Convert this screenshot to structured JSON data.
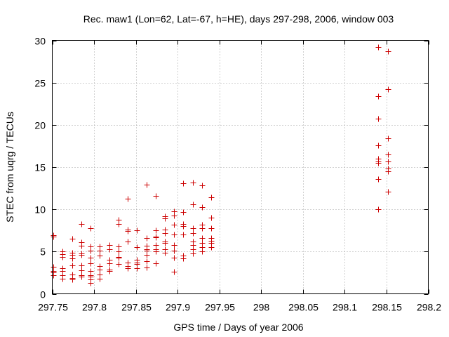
{
  "chart_data": {
    "type": "scatter",
    "title": "Rec. maw1 (Lon=62, Lat=-67, h=HE), days 297-298, 2006, window 003",
    "xlabel": "GPS time / Days of year 2006",
    "ylabel": "STEC from uqrg / TECUs",
    "xlim": [
      297.75,
      298.2
    ],
    "ylim": [
      0,
      30
    ],
    "xticks": [
      297.75,
      297.8,
      297.85,
      297.9,
      297.95,
      298.0,
      298.05,
      298.1,
      298.15,
      298.2
    ],
    "xtick_labels": [
      "297.75",
      "297.8",
      "297.85",
      "297.9",
      "297.95",
      "298",
      "298.05",
      "298.1",
      "298.15",
      "298.2"
    ],
    "yticks": [
      0,
      5,
      10,
      15,
      20,
      25,
      30
    ],
    "ytick_labels": [
      "0",
      "5",
      "10",
      "15",
      "20",
      "25",
      "30"
    ],
    "grid": true,
    "marker": "+",
    "color": "#cc0000",
    "series": [
      {
        "name": "STEC",
        "points": [
          [
            297.7514,
            6.9
          ],
          [
            297.7514,
            6.8
          ],
          [
            297.7514,
            3.2
          ],
          [
            297.7514,
            2.7
          ],
          [
            297.7514,
            2.5
          ],
          [
            297.7514,
            2.2
          ],
          [
            297.7625,
            5.0
          ],
          [
            297.7625,
            4.7
          ],
          [
            297.7625,
            4.4
          ],
          [
            297.7625,
            3.0
          ],
          [
            297.7625,
            2.7
          ],
          [
            297.7625,
            2.2
          ],
          [
            297.7625,
            1.8
          ],
          [
            297.7736,
            6.5
          ],
          [
            297.7736,
            4.9
          ],
          [
            297.7736,
            4.6
          ],
          [
            297.7736,
            4.2
          ],
          [
            297.7736,
            3.4
          ],
          [
            297.7736,
            2.3
          ],
          [
            297.7736,
            1.9
          ],
          [
            297.7736,
            1.7
          ],
          [
            297.7847,
            8.3
          ],
          [
            297.7847,
            6.1
          ],
          [
            297.7847,
            5.7
          ],
          [
            297.7847,
            4.8
          ],
          [
            297.7847,
            4.6
          ],
          [
            297.7847,
            3.4
          ],
          [
            297.7847,
            2.8
          ],
          [
            297.7847,
            2.2
          ],
          [
            297.7847,
            2.0
          ],
          [
            297.7958,
            7.8
          ],
          [
            297.7958,
            5.6
          ],
          [
            297.7958,
            5.1
          ],
          [
            297.7958,
            4.3
          ],
          [
            297.7958,
            3.6
          ],
          [
            297.7958,
            2.7
          ],
          [
            297.7958,
            2.2
          ],
          [
            297.7958,
            2.0
          ],
          [
            297.7958,
            1.7
          ],
          [
            297.7958,
            1.3
          ],
          [
            297.8069,
            5.6
          ],
          [
            297.8069,
            5.1
          ],
          [
            297.8069,
            4.5
          ],
          [
            297.8069,
            3.3
          ],
          [
            297.8069,
            2.9
          ],
          [
            297.8069,
            2.3
          ],
          [
            297.8069,
            1.8
          ],
          [
            297.8181,
            5.8
          ],
          [
            297.8181,
            5.3
          ],
          [
            297.8181,
            4.0
          ],
          [
            297.8181,
            3.6
          ],
          [
            297.8181,
            2.9
          ],
          [
            297.8181,
            2.7
          ],
          [
            297.8292,
            8.8
          ],
          [
            297.8292,
            8.3
          ],
          [
            297.8292,
            5.6
          ],
          [
            297.8292,
            5.0
          ],
          [
            297.8292,
            4.4
          ],
          [
            297.8292,
            4.3
          ],
          [
            297.8292,
            3.5
          ],
          [
            297.8403,
            11.3
          ],
          [
            297.8403,
            7.6
          ],
          [
            297.8403,
            7.4
          ],
          [
            297.8403,
            6.2
          ],
          [
            297.8403,
            3.7
          ],
          [
            297.8403,
            3.3
          ],
          [
            297.8403,
            3.0
          ],
          [
            297.8514,
            7.5
          ],
          [
            297.8514,
            5.5
          ],
          [
            297.8514,
            4.0
          ],
          [
            297.8514,
            3.7
          ],
          [
            297.8514,
            3.5
          ],
          [
            297.8514,
            3.0
          ],
          [
            297.8625,
            12.9
          ],
          [
            297.8625,
            6.6
          ],
          [
            297.8625,
            5.7
          ],
          [
            297.8625,
            5.3
          ],
          [
            297.8625,
            5.1
          ],
          [
            297.8625,
            4.6
          ],
          [
            297.8625,
            3.9
          ],
          [
            297.8625,
            3.1
          ],
          [
            297.8736,
            11.6
          ],
          [
            297.8736,
            7.5
          ],
          [
            297.8736,
            6.8
          ],
          [
            297.8736,
            6.7
          ],
          [
            297.8736,
            5.8
          ],
          [
            297.8736,
            5.3
          ],
          [
            297.8736,
            5.0
          ],
          [
            297.8736,
            3.6
          ],
          [
            297.8847,
            9.2
          ],
          [
            297.8847,
            8.9
          ],
          [
            297.8847,
            7.6
          ],
          [
            297.8847,
            7.2
          ],
          [
            297.8847,
            6.2
          ],
          [
            297.8847,
            6.0
          ],
          [
            297.8847,
            5.3
          ],
          [
            297.8847,
            4.9
          ],
          [
            297.8958,
            9.8
          ],
          [
            297.8958,
            9.3
          ],
          [
            297.8958,
            8.2
          ],
          [
            297.8958,
            7.0
          ],
          [
            297.8958,
            5.8
          ],
          [
            297.8958,
            5.1
          ],
          [
            297.8958,
            4.3
          ],
          [
            297.8958,
            2.6
          ],
          [
            297.9069,
            13.1
          ],
          [
            297.9069,
            9.7
          ],
          [
            297.9069,
            8.3
          ],
          [
            297.9069,
            8.0
          ],
          [
            297.9069,
            7.0
          ],
          [
            297.9069,
            4.5
          ],
          [
            297.9069,
            4.2
          ],
          [
            297.9181,
            13.2
          ],
          [
            297.9181,
            10.6
          ],
          [
            297.9181,
            7.8
          ],
          [
            297.9181,
            7.2
          ],
          [
            297.9181,
            6.2
          ],
          [
            297.9181,
            5.8
          ],
          [
            297.9181,
            5.3
          ],
          [
            297.9181,
            4.8
          ],
          [
            297.9292,
            12.8
          ],
          [
            297.9292,
            10.3
          ],
          [
            297.9292,
            8.2
          ],
          [
            297.9292,
            7.8
          ],
          [
            297.9292,
            6.6
          ],
          [
            297.9292,
            6.0
          ],
          [
            297.9292,
            5.5
          ],
          [
            297.9292,
            5.0
          ],
          [
            297.9403,
            11.4
          ],
          [
            297.9403,
            9.0
          ],
          [
            297.9403,
            7.8
          ],
          [
            297.9403,
            6.6
          ],
          [
            297.9403,
            6.3
          ],
          [
            297.9403,
            6.0
          ],
          [
            297.9403,
            5.5
          ],
          [
            298.1403,
            29.2
          ],
          [
            298.1403,
            23.4
          ],
          [
            298.1403,
            20.7
          ],
          [
            298.1403,
            17.6
          ],
          [
            298.1403,
            16.0
          ],
          [
            298.1403,
            15.7
          ],
          [
            298.1403,
            15.5
          ],
          [
            298.1403,
            13.6
          ],
          [
            298.1403,
            10.0
          ],
          [
            298.1514,
            28.7
          ],
          [
            298.1514,
            24.2
          ],
          [
            298.1514,
            18.4
          ],
          [
            298.1514,
            16.5
          ],
          [
            298.1514,
            15.7
          ],
          [
            298.1514,
            14.8
          ],
          [
            298.1514,
            14.5
          ],
          [
            298.1514,
            12.1
          ]
        ]
      }
    ]
  }
}
